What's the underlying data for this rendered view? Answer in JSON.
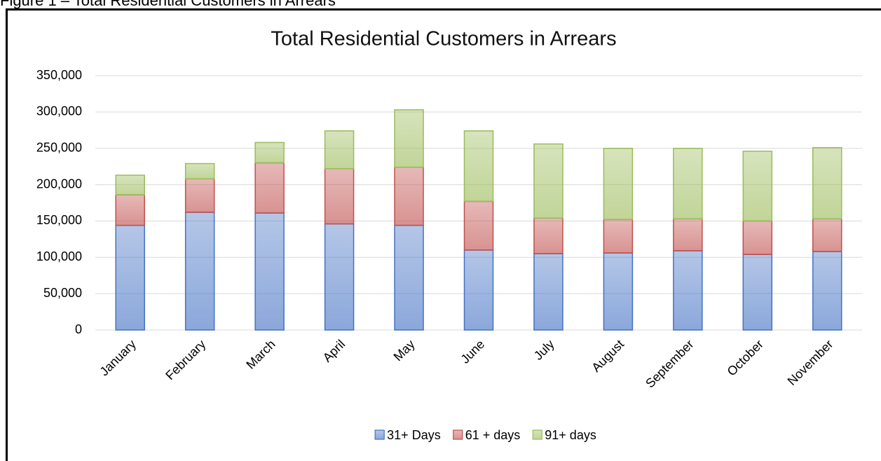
{
  "figure_caption": "Figure 1 – Total Residential Customers in Arrears",
  "chart_data": {
    "type": "stacked_bar",
    "title": "Total Residential Customers in Arrears",
    "categories": [
      "January",
      "February",
      "March",
      "April",
      "May",
      "June",
      "July",
      "August",
      "September",
      "October",
      "November"
    ],
    "series": [
      {
        "name": "31+ Days",
        "color": "#4472c4",
        "values": [
          144000,
          162000,
          161000,
          146000,
          144000,
          110000,
          105000,
          106000,
          109000,
          104000,
          108000
        ]
      },
      {
        "name": "61 + days",
        "color": "#c0504d",
        "values": [
          42000,
          46000,
          69000,
          76000,
          80000,
          67000,
          49000,
          46000,
          44000,
          46000,
          45000
        ]
      },
      {
        "name": "91+ days",
        "color": "#9bbb59",
        "values": [
          27000,
          21000,
          28000,
          52000,
          79000,
          97000,
          102000,
          98000,
          97000,
          96000,
          98000
        ]
      }
    ],
    "ylim": [
      0,
      350000
    ],
    "yticks": [
      0,
      {
        "value": 50000,
        "label": "50,000"
      },
      {
        "value": 100000,
        "label": "100,000"
      },
      {
        "value": 150000,
        "label": "150,000"
      },
      {
        "value": 200000,
        "label": "200,000"
      },
      {
        "value": 250000,
        "label": "250,000"
      },
      {
        "value": 300000,
        "label": "300,000"
      },
      {
        "value": 350000,
        "label": "350,000"
      }
    ],
    "grid": true,
    "legend": "bottom"
  }
}
